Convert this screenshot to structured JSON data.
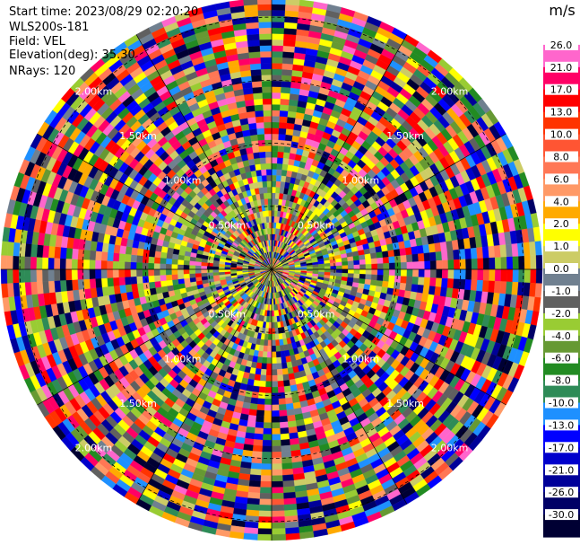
{
  "header": {
    "start_time": "Start time: 2023/08/29 02:20:20",
    "site": "WLS200s-181",
    "field": "Field: VEL",
    "elevation": "Elevation(deg): 35.30",
    "nrays": "NRays: 120"
  },
  "chart_data": {
    "type": "heatmap",
    "projection": "polar",
    "field": "VEL",
    "elevation_deg": 35.3,
    "nrays": 120,
    "range_rings_km": [
      0.5,
      1.0,
      1.5,
      2.0
    ],
    "range_ring_labels": [
      "0.50km",
      "1.00km",
      "1.50km",
      "2.00km"
    ],
    "max_range_km": 2.15,
    "spokes_deg": [
      0,
      30,
      60,
      90,
      120,
      150,
      180,
      210,
      240,
      270,
      300,
      330
    ],
    "colorbar": {
      "unit": "m/s",
      "min": -30.0,
      "max": 30.0,
      "tick_labels": [
        "26.0",
        "21.0",
        "17.0",
        "13.0",
        "10.0",
        "8.0",
        "6.0",
        "4.0",
        "2.0",
        "1.0",
        "0.0",
        "-1.0",
        "-2.0",
        "-4.0",
        "-6.0",
        "-8.0",
        "-10.0",
        "-13.0",
        "-17.0",
        "-21.0",
        "-26.0",
        "-30.0"
      ],
      "colors": [
        "#ffffff",
        "#ff66cc",
        "#ff0066",
        "#ff0000",
        "#ff3300",
        "#ff5533",
        "#ff7755",
        "#ff9966",
        "#ffaa00",
        "#ffff00",
        "#cccc66",
        "#708090",
        "#606060",
        "#99cc33",
        "#669933",
        "#228b22",
        "#2e8b57",
        "#1e90ff",
        "#0000ff",
        "#0000cc",
        "#000099",
        "#000066",
        "#000033"
      ]
    }
  }
}
